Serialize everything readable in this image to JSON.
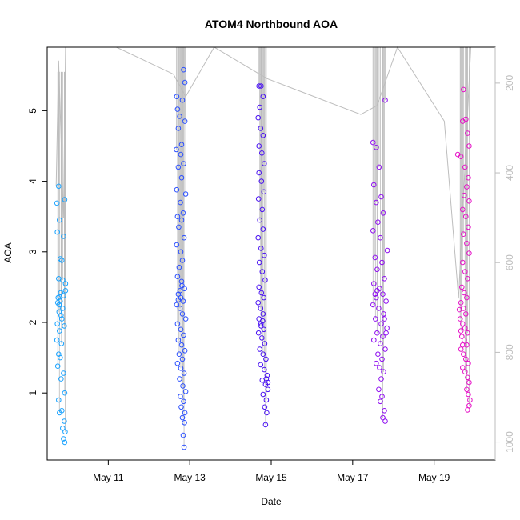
{
  "chart_data": {
    "type": "scatter",
    "title": "ATOM4 Northbound AOA",
    "xlabel": "Date",
    "ylabel": "AOA",
    "x_ticks": [
      {
        "label": "May 11",
        "day": 11
      },
      {
        "label": "May 13",
        "day": 13
      },
      {
        "label": "May 15",
        "day": 15
      },
      {
        "label": "May 17",
        "day": 17
      },
      {
        "label": "May 19",
        "day": 19
      }
    ],
    "xlim": [
      "May 9 12:00",
      "May 20 12:00"
    ],
    "y_ticks": [
      1,
      2,
      3,
      4,
      5
    ],
    "ylim": [
      0.05,
      5.9
    ],
    "right_axis": {
      "ticks": [
        200,
        400,
        600,
        800,
        1000
      ],
      "lim": [
        1040,
        120
      ],
      "reversed": true,
      "color": "#bdbdbd"
    },
    "clusters": [
      {
        "date": "May 9",
        "color": "#1aa3ff",
        "x_center": 9.85,
        "x_spread": 0.12,
        "points": [
          [
            9.78,
            3.93
          ],
          [
            9.93,
            3.74
          ],
          [
            9.74,
            3.69
          ],
          [
            9.8,
            3.45
          ],
          [
            9.75,
            3.28
          ],
          [
            9.9,
            3.22
          ],
          [
            9.86,
            2.88
          ],
          [
            9.82,
            2.9
          ],
          [
            9.78,
            2.62
          ],
          [
            9.95,
            2.55
          ],
          [
            9.83,
            2.42
          ],
          [
            9.9,
            2.38
          ],
          [
            9.77,
            2.35
          ],
          [
            9.82,
            2.3
          ],
          [
            9.88,
            2.2
          ],
          [
            9.79,
            2.15
          ],
          [
            9.86,
            2.05
          ],
          [
            9.75,
            1.98
          ],
          [
            9.92,
            1.95
          ],
          [
            9.8,
            1.88
          ],
          [
            9.74,
            1.75
          ],
          [
            9.85,
            1.7
          ],
          [
            9.78,
            1.55
          ],
          [
            9.82,
            1.5
          ],
          [
            9.76,
            1.38
          ],
          [
            9.9,
            1.28
          ],
          [
            9.84,
            1.2
          ],
          [
            9.93,
            1.0
          ],
          [
            9.78,
            0.9
          ],
          [
            9.86,
            0.75
          ],
          [
            9.8,
            0.72
          ],
          [
            9.92,
            0.6
          ],
          [
            9.88,
            0.5
          ],
          [
            9.94,
            0.45
          ],
          [
            9.9,
            0.35
          ],
          [
            9.93,
            0.3
          ],
          [
            9.88,
            2.6
          ],
          [
            9.95,
            2.45
          ],
          [
            9.79,
            2.25
          ],
          [
            9.84,
            2.1
          ],
          [
            9.76,
            2.28
          ],
          [
            9.81,
            2.36
          ]
        ],
        "guide": {
          "top": 5.55,
          "bottom": 0.28
        }
      },
      {
        "date": "May 12–13",
        "color": "#2a4fff",
        "x_center": 12.75,
        "x_spread": 0.2,
        "points": [
          [
            12.85,
            5.58
          ],
          [
            12.88,
            5.4
          ],
          [
            12.68,
            5.2
          ],
          [
            12.82,
            5.15
          ],
          [
            12.7,
            5.02
          ],
          [
            12.75,
            4.92
          ],
          [
            12.88,
            4.85
          ],
          [
            12.72,
            4.75
          ],
          [
            12.8,
            4.52
          ],
          [
            12.67,
            4.45
          ],
          [
            12.78,
            4.38
          ],
          [
            12.85,
            4.25
          ],
          [
            12.72,
            4.2
          ],
          [
            12.8,
            4.05
          ],
          [
            12.68,
            3.88
          ],
          [
            12.9,
            3.82
          ],
          [
            12.77,
            3.7
          ],
          [
            12.84,
            3.55
          ],
          [
            12.7,
            3.5
          ],
          [
            12.8,
            3.45
          ],
          [
            12.73,
            3.35
          ],
          [
            12.86,
            3.2
          ],
          [
            12.68,
            3.1
          ],
          [
            12.78,
            3.0
          ],
          [
            12.82,
            2.88
          ],
          [
            12.74,
            2.78
          ],
          [
            12.7,
            2.65
          ],
          [
            12.8,
            2.58
          ],
          [
            12.87,
            2.48
          ],
          [
            12.72,
            2.4
          ],
          [
            12.78,
            2.35
          ],
          [
            12.84,
            2.3
          ],
          [
            12.68,
            2.25
          ],
          [
            12.76,
            2.2
          ],
          [
            12.82,
            2.12
          ],
          [
            12.9,
            2.05
          ],
          [
            12.7,
            1.98
          ],
          [
            12.78,
            1.9
          ],
          [
            12.85,
            1.82
          ],
          [
            12.72,
            1.75
          ],
          [
            12.8,
            1.68
          ],
          [
            12.88,
            1.6
          ],
          [
            12.74,
            1.55
          ],
          [
            12.82,
            1.48
          ],
          [
            12.7,
            1.42
          ],
          [
            12.78,
            1.35
          ],
          [
            12.86,
            1.28
          ],
          [
            12.75,
            1.2
          ],
          [
            12.83,
            1.1
          ],
          [
            12.9,
            1.02
          ],
          [
            12.77,
            0.95
          ],
          [
            12.85,
            0.88
          ],
          [
            12.79,
            0.8
          ],
          [
            12.88,
            0.72
          ],
          [
            12.82,
            0.65
          ],
          [
            12.87,
            0.58
          ],
          [
            12.84,
            0.4
          ],
          [
            12.86,
            0.23
          ],
          [
            12.72,
            2.32
          ],
          [
            12.76,
            2.45
          ],
          [
            12.81,
            2.52
          ]
        ],
        "guide": {
          "top": 5.9,
          "bottom": 0.23
        }
      },
      {
        "date": "May 14–15",
        "color": "#4810f2",
        "x_center": 14.75,
        "x_spread": 0.2,
        "points": [
          [
            14.7,
            5.35
          ],
          [
            14.75,
            5.35
          ],
          [
            14.8,
            5.2
          ],
          [
            14.72,
            5.05
          ],
          [
            14.68,
            4.9
          ],
          [
            14.74,
            4.75
          ],
          [
            14.8,
            4.65
          ],
          [
            14.7,
            4.5
          ],
          [
            14.77,
            4.4
          ],
          [
            14.83,
            4.25
          ],
          [
            14.7,
            4.12
          ],
          [
            14.76,
            4.0
          ],
          [
            14.82,
            3.85
          ],
          [
            14.69,
            3.75
          ],
          [
            14.78,
            3.6
          ],
          [
            14.72,
            3.45
          ],
          [
            14.8,
            3.32
          ],
          [
            14.68,
            3.2
          ],
          [
            14.75,
            3.05
          ],
          [
            14.83,
            2.95
          ],
          [
            14.71,
            2.85
          ],
          [
            14.78,
            2.72
          ],
          [
            14.85,
            2.6
          ],
          [
            14.7,
            2.5
          ],
          [
            14.76,
            2.42
          ],
          [
            14.82,
            2.35
          ],
          [
            14.68,
            2.28
          ],
          [
            14.74,
            2.2
          ],
          [
            14.8,
            2.12
          ],
          [
            14.7,
            2.05
          ],
          [
            14.75,
            1.98
          ],
          [
            14.82,
            1.9
          ],
          [
            14.69,
            1.85
          ],
          [
            14.77,
            1.78
          ],
          [
            14.84,
            1.7
          ],
          [
            14.72,
            1.62
          ],
          [
            14.8,
            1.55
          ],
          [
            14.87,
            1.48
          ],
          [
            14.74,
            1.4
          ],
          [
            14.83,
            1.33
          ],
          [
            14.9,
            1.25
          ],
          [
            14.78,
            1.18
          ],
          [
            14.86,
            1.12
          ],
          [
            14.92,
            1.05
          ],
          [
            14.8,
            0.98
          ],
          [
            14.88,
            0.9
          ],
          [
            14.84,
            0.8
          ],
          [
            14.89,
            0.72
          ],
          [
            14.86,
            0.55
          ],
          [
            14.88,
            1.2
          ],
          [
            14.92,
            1.15
          ],
          [
            14.75,
            1.95
          ],
          [
            14.79,
            2.02
          ]
        ],
        "guide": {
          "top": 5.9,
          "bottom": 0.55
        }
      },
      {
        "date": "May 17–18",
        "color": "#8f0ef0",
        "x_center": 17.6,
        "x_spread": 0.18,
        "points": [
          [
            17.8,
            5.15
          ],
          [
            17.5,
            4.55
          ],
          [
            17.58,
            4.48
          ],
          [
            17.65,
            4.2
          ],
          [
            17.52,
            3.95
          ],
          [
            17.7,
            3.78
          ],
          [
            17.58,
            3.7
          ],
          [
            17.75,
            3.55
          ],
          [
            17.62,
            3.42
          ],
          [
            17.5,
            3.3
          ],
          [
            17.68,
            3.2
          ],
          [
            17.85,
            3.02
          ],
          [
            17.55,
            2.92
          ],
          [
            17.72,
            2.85
          ],
          [
            17.6,
            2.75
          ],
          [
            17.78,
            2.62
          ],
          [
            17.52,
            2.55
          ],
          [
            17.66,
            2.48
          ],
          [
            17.74,
            2.4
          ],
          [
            17.58,
            2.35
          ],
          [
            17.82,
            2.3
          ],
          [
            17.5,
            2.25
          ],
          [
            17.64,
            2.2
          ],
          [
            17.76,
            2.12
          ],
          [
            17.56,
            2.05
          ],
          [
            17.7,
            1.98
          ],
          [
            17.84,
            1.92
          ],
          [
            17.6,
            1.85
          ],
          [
            17.74,
            1.8
          ],
          [
            17.52,
            1.75
          ],
          [
            17.68,
            1.7
          ],
          [
            17.8,
            1.62
          ],
          [
            17.62,
            1.55
          ],
          [
            17.72,
            1.48
          ],
          [
            17.58,
            1.42
          ],
          [
            17.66,
            1.36
          ],
          [
            17.76,
            1.3
          ],
          [
            17.7,
            1.2
          ],
          [
            17.64,
            1.05
          ],
          [
            17.72,
            0.95
          ],
          [
            17.68,
            0.88
          ],
          [
            17.78,
            0.75
          ],
          [
            17.74,
            0.65
          ],
          [
            17.8,
            0.6
          ],
          [
            17.55,
            2.4
          ],
          [
            17.6,
            2.45
          ],
          [
            17.78,
            2.05
          ],
          [
            17.82,
            1.85
          ]
        ],
        "guide": {
          "top": 5.9,
          "bottom": 0.6
        }
      },
      {
        "date": "May 19–20",
        "color": "#e611c7",
        "x_center": 19.75,
        "x_spread": 0.15,
        "points": [
          [
            19.72,
            5.3
          ],
          [
            19.78,
            4.88
          ],
          [
            19.7,
            4.85
          ],
          [
            19.82,
            4.68
          ],
          [
            19.86,
            4.5
          ],
          [
            19.58,
            4.38
          ],
          [
            19.66,
            4.35
          ],
          [
            19.76,
            4.2
          ],
          [
            19.84,
            4.05
          ],
          [
            19.8,
            3.92
          ],
          [
            19.74,
            3.8
          ],
          [
            19.86,
            3.72
          ],
          [
            19.7,
            3.6
          ],
          [
            19.78,
            3.5
          ],
          [
            19.84,
            3.35
          ],
          [
            19.72,
            3.25
          ],
          [
            19.8,
            3.12
          ],
          [
            19.86,
            2.98
          ],
          [
            19.7,
            2.85
          ],
          [
            19.76,
            2.72
          ],
          [
            19.82,
            2.62
          ],
          [
            19.68,
            2.5
          ],
          [
            19.74,
            2.42
          ],
          [
            19.8,
            2.35
          ],
          [
            19.66,
            2.28
          ],
          [
            19.72,
            2.2
          ],
          [
            19.78,
            2.12
          ],
          [
            19.64,
            2.05
          ],
          [
            19.7,
            1.98
          ],
          [
            19.76,
            1.92
          ],
          [
            19.82,
            1.85
          ],
          [
            19.68,
            1.8
          ],
          [
            19.74,
            1.75
          ],
          [
            19.8,
            1.68
          ],
          [
            19.66,
            1.62
          ],
          [
            19.72,
            1.55
          ],
          [
            19.78,
            1.48
          ],
          [
            19.84,
            1.42
          ],
          [
            19.7,
            1.36
          ],
          [
            19.76,
            1.3
          ],
          [
            19.82,
            1.22
          ],
          [
            19.86,
            1.15
          ],
          [
            19.8,
            1.05
          ],
          [
            19.84,
            0.98
          ],
          [
            19.88,
            0.9
          ],
          [
            19.86,
            0.82
          ],
          [
            19.82,
            0.76
          ],
          [
            19.62,
            2.18
          ],
          [
            19.66,
            1.88
          ],
          [
            19.7,
            1.68
          ]
        ],
        "guide": {
          "top": 5.9,
          "bottom": 0.76
        }
      }
    ],
    "depth_line": {
      "color": "#bdbdbd",
      "points": [
        [
          9.72,
          430
        ],
        [
          9.78,
          150
        ],
        [
          9.9,
          500
        ],
        [
          9.95,
          110
        ],
        [
          11.2,
          115
        ],
        [
          12.6,
          180
        ],
        [
          12.9,
          230
        ],
        [
          13.6,
          110
        ],
        [
          14.9,
          190
        ],
        [
          17.2,
          270
        ],
        [
          17.6,
          250
        ],
        [
          18.1,
          120
        ],
        [
          19.25,
          285
        ],
        [
          19.6,
          680
        ],
        [
          19.9,
          110
        ]
      ]
    }
  }
}
